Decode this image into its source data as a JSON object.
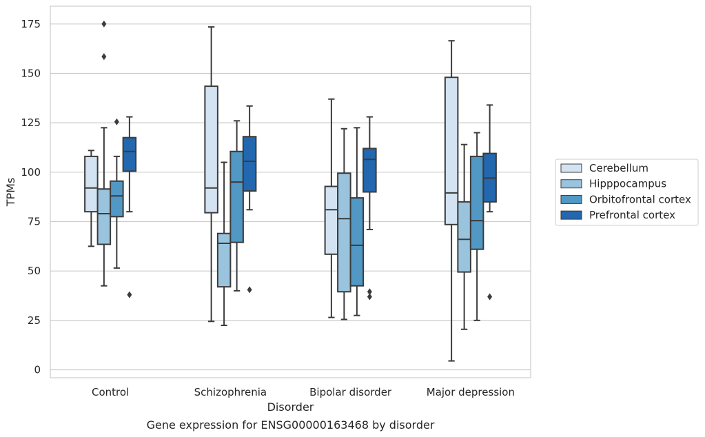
{
  "caption": "Gene expression for ENSG00000163468 by disorder",
  "chart_data": {
    "type": "box",
    "xlabel": "Disorder",
    "ylabel": "TPMs",
    "ylim": [
      -4,
      184
    ],
    "yticks": [
      0,
      25,
      50,
      75,
      100,
      125,
      150,
      175
    ],
    "grid": "horizontal",
    "legend_position": "right",
    "categories": [
      "Control",
      "Schizophrenia",
      "Bipolar disorder",
      "Major depression"
    ],
    "series": [
      {
        "name": "Cerebellum",
        "color": "#d3e3f2",
        "boxes": [
          {
            "whisker_low": 62.5,
            "q1": 80,
            "median": 92,
            "q3": 108,
            "whisker_high": 111,
            "outliers": []
          },
          {
            "whisker_low": 24.5,
            "q1": 79.5,
            "median": 92,
            "q3": 143.5,
            "whisker_high": 173.5,
            "outliers": []
          },
          {
            "whisker_low": 26.5,
            "q1": 58.5,
            "median": 81,
            "q3": 92.8,
            "whisker_high": 137,
            "outliers": []
          },
          {
            "whisker_low": 4.5,
            "q1": 73.5,
            "median": 89.5,
            "q3": 148,
            "whisker_high": 166.5,
            "outliers": []
          }
        ]
      },
      {
        "name": "Hipppocampus",
        "color": "#9ac4de",
        "boxes": [
          {
            "whisker_low": 42.5,
            "q1": 63.5,
            "median": 79,
            "q3": 91.5,
            "whisker_high": 122.5,
            "outliers": [
              175,
              158.5
            ]
          },
          {
            "whisker_low": 22.5,
            "q1": 42,
            "median": 64,
            "q3": 69,
            "whisker_high": 105,
            "outliers": []
          },
          {
            "whisker_low": 25.5,
            "q1": 39.5,
            "median": 76.5,
            "q3": 99.5,
            "whisker_high": 122,
            "outliers": []
          },
          {
            "whisker_low": 20.5,
            "q1": 49.5,
            "median": 66,
            "q3": 85,
            "whisker_high": 114,
            "outliers": []
          }
        ]
      },
      {
        "name": "Orbitofrontal cortex",
        "color": "#5198c5",
        "boxes": [
          {
            "whisker_low": 51.5,
            "q1": 77.5,
            "median": 88,
            "q3": 95.5,
            "whisker_high": 108,
            "outliers": [
              125.5
            ]
          },
          {
            "whisker_low": 40,
            "q1": 64.5,
            "median": 95,
            "q3": 110.5,
            "whisker_high": 126,
            "outliers": []
          },
          {
            "whisker_low": 27.5,
            "q1": 42.5,
            "median": 63,
            "q3": 87,
            "whisker_high": 122.5,
            "outliers": []
          },
          {
            "whisker_low": 25,
            "q1": 61,
            "median": 75.5,
            "q3": 108,
            "whisker_high": 120,
            "outliers": []
          }
        ]
      },
      {
        "name": "Prefrontal cortex",
        "color": "#2367ae",
        "boxes": [
          {
            "whisker_low": 80,
            "q1": 100.5,
            "median": 110.5,
            "q3": 117.5,
            "whisker_high": 128,
            "outliers": [
              38
            ]
          },
          {
            "whisker_low": 81,
            "q1": 90.5,
            "median": 105.5,
            "q3": 118,
            "whisker_high": 133.5,
            "outliers": [
              40.5
            ]
          },
          {
            "whisker_low": 71,
            "q1": 90,
            "median": 106.5,
            "q3": 112,
            "whisker_high": 128,
            "outliers": [
              39.5,
              37
            ]
          },
          {
            "whisker_low": 80,
            "q1": 85,
            "median": 97,
            "q3": 109.5,
            "whisker_high": 134,
            "outliers": [
              37
            ]
          }
        ]
      }
    ]
  }
}
